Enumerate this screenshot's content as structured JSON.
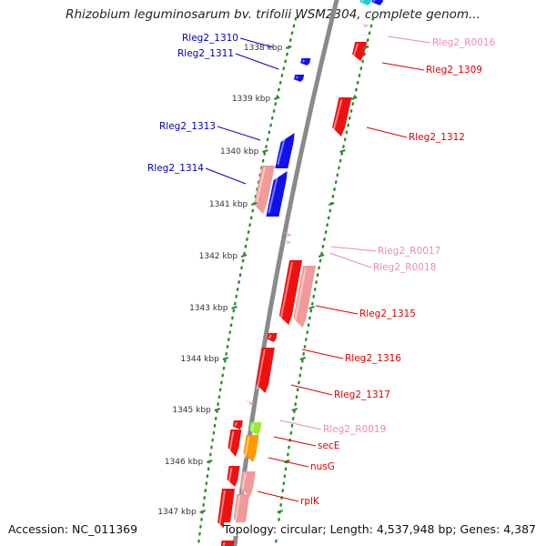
{
  "title": "Rhizobium leguminosarum bv. trifolii WSM2304, complete genom...",
  "footer": {
    "accession": "Accession: NC_011369",
    "summary": "Topology: circular; Length: 4,537,948 bp; Genes: 4,387"
  },
  "colors": {
    "backbone": "#8a8a8a",
    "tick": "#2e8b2e",
    "forward_cds": "#ee1111",
    "forward_pseudo": "#f09a9a",
    "rna": "#f2a0c8",
    "reverse_cds": "#1111ee",
    "highlight_green": "#99ee33",
    "highlight_orange": "#ff9900",
    "label_red": "#dd0000",
    "label_blue": "#0000bb",
    "label_pink": "#ee88bb"
  },
  "ticks": [
    "1338 kbp",
    "1339 kbp",
    "1340 kbp",
    "1341 kbp",
    "1342 kbp",
    "1343 kbp",
    "1344 kbp",
    "1345 kbp",
    "1346 kbp",
    "1347 kbp"
  ],
  "labels": {
    "left": [
      "Rleg2_1310",
      "Rleg2_1311",
      "Rleg2_1313",
      "Rleg2_1314"
    ],
    "right": [
      "Rleg2_R0016",
      "Rleg2_1309",
      "Rleg2_1312",
      "Rleg2_R0017",
      "Rleg2_R0018",
      "Rleg2_1315",
      "Rleg2_1316",
      "Rleg2_1317",
      "Rleg2_R0019",
      "secE",
      "nusG",
      "rplK"
    ]
  }
}
